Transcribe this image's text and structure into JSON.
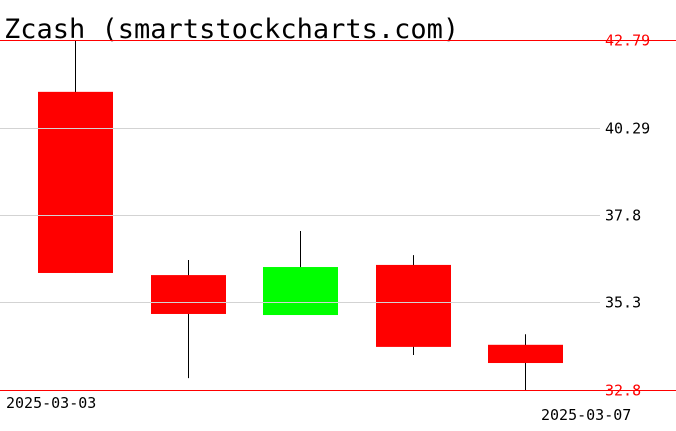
{
  "chart_data": {
    "type": "candlestick",
    "title": "Zcash (smartstockcharts.com)",
    "xlabel": "",
    "ylabel": "",
    "ylim": [
      32.8,
      42.79
    ],
    "y_ticks": [
      "42.79",
      "40.29",
      "37.8",
      "35.3",
      "32.8"
    ],
    "y_tick_values": [
      42.79,
      40.29,
      37.8,
      35.3,
      32.8
    ],
    "x_tick_labels": [
      "2025-03-03",
      "2025-03-07"
    ],
    "grid": true,
    "candles": [
      {
        "open": 41.31,
        "high": 42.79,
        "low": 36.14,
        "close": 36.14
      },
      {
        "open": 36.08,
        "high": 36.51,
        "low": 33.14,
        "close": 34.97
      },
      {
        "open": 34.94,
        "high": 37.34,
        "low": 34.94,
        "close": 36.31
      },
      {
        "open": 36.37,
        "high": 36.65,
        "low": 33.8,
        "close": 34.03
      },
      {
        "open": 34.09,
        "high": 34.39,
        "low": 32.8,
        "close": 33.57
      }
    ],
    "colors": {
      "up": "#00ff00",
      "down": "#ff0000",
      "wick": "#000000",
      "bound_line": "#ff0000",
      "grid": "#d3d3d3"
    }
  }
}
